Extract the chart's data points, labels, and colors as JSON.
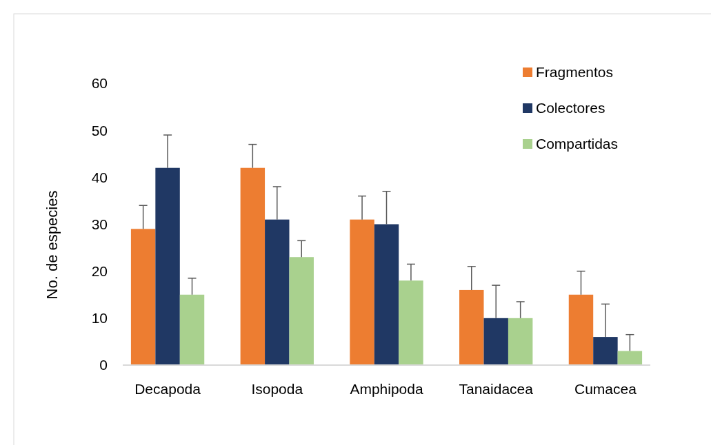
{
  "chart_data": {
    "type": "bar",
    "ylabel": "No. de especies",
    "categories": [
      "Decapoda",
      "Isopoda",
      "Amphipoda",
      "Tanaidacea",
      "Cumacea"
    ],
    "series": [
      {
        "name": "Fragmentos",
        "color": "#ed7d31",
        "values": [
          29,
          42,
          31,
          16,
          15
        ],
        "errors": [
          [
            29,
            34
          ],
          [
            42,
            47
          ],
          [
            31,
            36
          ],
          [
            16,
            21
          ],
          [
            15,
            20
          ]
        ]
      },
      {
        "name": "Colectores",
        "color": "#203864",
        "values": [
          42,
          31,
          30,
          10,
          6
        ],
        "errors": [
          [
            42,
            49
          ],
          [
            31,
            38
          ],
          [
            30,
            37
          ],
          [
            10,
            17
          ],
          [
            6,
            13
          ]
        ]
      },
      {
        "name": "Compartidas",
        "color": "#a9d18e",
        "values": [
          15,
          23,
          18,
          10,
          3
        ],
        "errors": [
          [
            15,
            18.5
          ],
          [
            23,
            26.5
          ],
          [
            18,
            21.5
          ],
          [
            10,
            13.5
          ],
          [
            3,
            6.5
          ]
        ]
      }
    ],
    "ylim": [
      0,
      60
    ],
    "yticks": [
      0,
      10,
      20,
      30,
      40,
      50,
      60
    ],
    "legend": "top right"
  }
}
